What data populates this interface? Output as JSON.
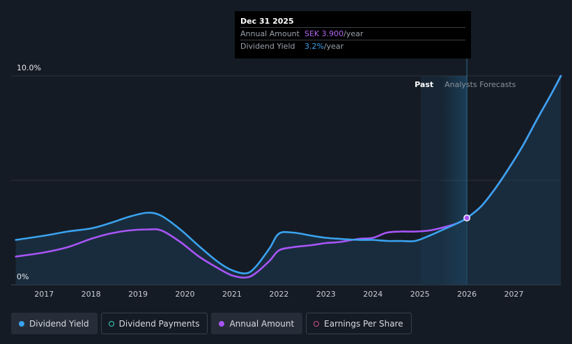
{
  "chart_data": {
    "type": "line",
    "x_ticks": [
      "2017",
      "2018",
      "2019",
      "2020",
      "2021",
      "2022",
      "2023",
      "2024",
      "2025",
      "2026",
      "2027"
    ],
    "y_ticks": [
      "10.0%",
      "0%"
    ],
    "ylim": [
      0,
      10
    ],
    "x_range": [
      2016.3,
      2028.0
    ],
    "grid": true,
    "regions": [
      {
        "label": "Past",
        "to": 2026.0,
        "color": "#ffffff"
      },
      {
        "label": "Analysts Forecasts",
        "from": 2026.0,
        "color": "#8a929c"
      }
    ],
    "series": [
      {
        "name": "Dividend Yield",
        "color": "#3aa3f0",
        "x": [
          2016.4,
          2017.0,
          2017.5,
          2018.0,
          2018.4,
          2018.8,
          2019.2,
          2019.5,
          2019.9,
          2020.3,
          2020.7,
          2021.0,
          2021.3,
          2021.5,
          2021.8,
          2022.0,
          2022.3,
          2022.7,
          2023.0,
          2023.3,
          2023.7,
          2024.0,
          2024.3,
          2024.6,
          2024.9,
          2025.2,
          2025.5,
          2025.8,
          2026.0,
          2026.3,
          2026.6,
          2026.9,
          2027.2,
          2027.5,
          2027.8,
          2028.0
        ],
        "y": [
          2.15,
          2.35,
          2.55,
          2.7,
          2.95,
          3.25,
          3.45,
          3.3,
          2.65,
          1.85,
          1.1,
          0.7,
          0.55,
          0.85,
          1.75,
          2.45,
          2.5,
          2.35,
          2.25,
          2.2,
          2.15,
          2.15,
          2.1,
          2.1,
          2.1,
          2.35,
          2.65,
          2.95,
          3.2,
          3.75,
          4.6,
          5.6,
          6.7,
          7.95,
          9.15,
          10.0
        ]
      },
      {
        "name": "Annual Amount",
        "color": "#a855f7",
        "x": [
          2016.4,
          2017.0,
          2017.5,
          2018.0,
          2018.4,
          2018.8,
          2019.2,
          2019.5,
          2019.9,
          2020.3,
          2020.7,
          2021.0,
          2021.3,
          2021.5,
          2021.8,
          2022.0,
          2022.3,
          2022.7,
          2023.0,
          2023.3,
          2023.7,
          2024.0,
          2024.3,
          2024.6,
          2024.9,
          2025.2,
          2025.5,
          2025.8,
          2026.0,
          2026.3,
          2026.6,
          2026.9,
          2027.2,
          2027.5,
          2027.8,
          2028.0
        ],
        "y": [
          1.35,
          1.55,
          1.8,
          2.2,
          2.45,
          2.6,
          2.65,
          2.6,
          2.05,
          1.35,
          0.8,
          0.45,
          0.35,
          0.55,
          1.15,
          1.65,
          1.8,
          1.9,
          2.0,
          2.05,
          2.2,
          2.25,
          2.5,
          2.55,
          2.55,
          2.6,
          2.75,
          2.95,
          3.2,
          3.75,
          4.6,
          5.6,
          6.7,
          7.95,
          9.15,
          10.0
        ]
      }
    ],
    "highlight_point": {
      "x": 2026.0,
      "y": 3.2
    },
    "tooltip": {
      "date": "Dec 31 2025",
      "rows": [
        {
          "key": "Annual Amount",
          "value": "SEK 3.900",
          "unit": "/year"
        },
        {
          "key": "Dividend Yield",
          "value": "3.2%",
          "unit": "/year"
        }
      ]
    },
    "legend": [
      {
        "label": "Dividend Yield",
        "color": "#3aa3f0",
        "filled": true,
        "active": true
      },
      {
        "label": "Dividend Payments",
        "color": "#37d3c0",
        "filled": false,
        "active": false
      },
      {
        "label": "Annual Amount",
        "color": "#a855f7",
        "filled": true,
        "active": true
      },
      {
        "label": "Earnings Per Share",
        "color": "#d04a8b",
        "filled": false,
        "active": false
      }
    ]
  }
}
